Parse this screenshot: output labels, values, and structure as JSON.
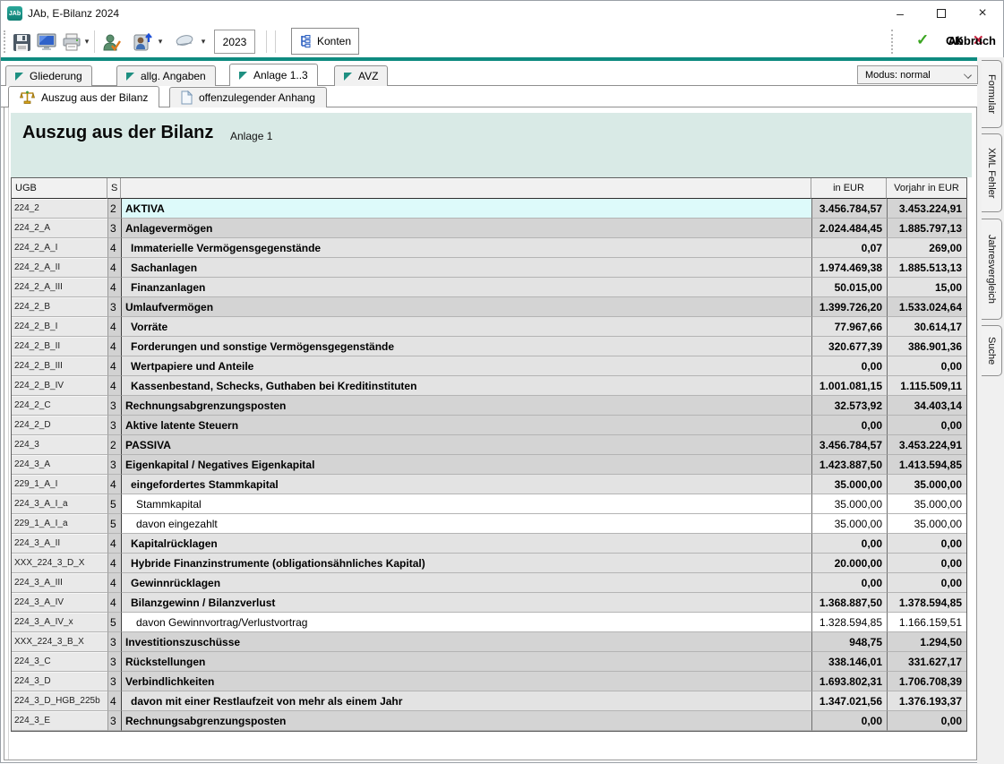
{
  "window": {
    "icon_text": "JAb",
    "title": "JAb, E-Bilanz 2024",
    "controls": {
      "minimize": "–",
      "maximize": "",
      "close": "×"
    }
  },
  "toolbar": {
    "year": "2023",
    "konten_label": "Konten",
    "ok_label": "OK",
    "cancel_label": "Abbruch",
    "ok_glyph": "✓",
    "cancel_glyph": "✕",
    "icons": [
      "save-icon",
      "monitor-icon",
      "print-icon",
      "user-check-icon",
      "user-up-icon",
      "eraser-icon"
    ]
  },
  "mode_select": {
    "value": "Modus: normal"
  },
  "tabs": [
    {
      "label": "Gliederung",
      "active": false
    },
    {
      "label": "allg. Angaben",
      "active": false
    },
    {
      "label": "Anlage 1..3",
      "active": true
    },
    {
      "label": "AVZ",
      "active": false
    }
  ],
  "subtabs": [
    {
      "label": "Auszug aus der Bilanz",
      "active": true,
      "icon": "scales-icon"
    },
    {
      "label": "offenzulegender Anhang",
      "active": false,
      "icon": "document-icon"
    }
  ],
  "side_tabs": [
    "Formular",
    "XML Fehler",
    "Jahresvergleich",
    "Suche"
  ],
  "banner": {
    "title": "Auszug aus der Bilanz",
    "subtitle": "Anlage 1"
  },
  "colors": {
    "accent_teal": "#0e8b80",
    "banner_bg": "#d9eae6",
    "selected_row": "#ddfafa",
    "ok_green": "#3aa520",
    "cancel_red": "#c41e3a"
  },
  "table": {
    "columns": [
      "UGB",
      "S",
      "",
      "in EUR",
      "Vorjahr in EUR"
    ],
    "rows": [
      {
        "code": "224_2",
        "s": "2",
        "name": "AKTIVA",
        "eur": "3.456.784,57",
        "prev": "3.453.224,91",
        "level": 2,
        "selected": true
      },
      {
        "code": "224_2_A",
        "s": "3",
        "name": "Anlagevermögen",
        "eur": "2.024.484,45",
        "prev": "1.885.797,13",
        "level": 3
      },
      {
        "code": "224_2_A_I",
        "s": "4",
        "name": "Immaterielle Vermögensgegenstände",
        "eur": "0,07",
        "prev": "269,00",
        "level": 4
      },
      {
        "code": "224_2_A_II",
        "s": "4",
        "name": "Sachanlagen",
        "eur": "1.974.469,38",
        "prev": "1.885.513,13",
        "level": 4
      },
      {
        "code": "224_2_A_III",
        "s": "4",
        "name": "Finanzanlagen",
        "eur": "50.015,00",
        "prev": "15,00",
        "level": 4
      },
      {
        "code": "224_2_B",
        "s": "3",
        "name": "Umlaufvermögen",
        "eur": "1.399.726,20",
        "prev": "1.533.024,64",
        "level": 3
      },
      {
        "code": "224_2_B_I",
        "s": "4",
        "name": "Vorräte",
        "eur": "77.967,66",
        "prev": "30.614,17",
        "level": 4
      },
      {
        "code": "224_2_B_II",
        "s": "4",
        "name": "Forderungen und sonstige Vermögensgegenstände",
        "eur": "320.677,39",
        "prev": "386.901,36",
        "level": 4
      },
      {
        "code": "224_2_B_III",
        "s": "4",
        "name": "Wertpapiere und Anteile",
        "eur": "0,00",
        "prev": "0,00",
        "level": 4
      },
      {
        "code": "224_2_B_IV",
        "s": "4",
        "name": "Kassenbestand, Schecks, Guthaben bei Kreditinstituten",
        "eur": "1.001.081,15",
        "prev": "1.115.509,11",
        "level": 4
      },
      {
        "code": "224_2_C",
        "s": "3",
        "name": "Rechnungsabgrenzungsposten",
        "eur": "32.573,92",
        "prev": "34.403,14",
        "level": 3
      },
      {
        "code": "224_2_D",
        "s": "3",
        "name": "Aktive latente Steuern",
        "eur": "0,00",
        "prev": "0,00",
        "level": 3
      },
      {
        "code": "224_3",
        "s": "2",
        "name": "PASSIVA",
        "eur": "3.456.784,57",
        "prev": "3.453.224,91",
        "level": 2
      },
      {
        "code": "224_3_A",
        "s": "3",
        "name": "Eigenkapital / Negatives Eigenkapital",
        "eur": "1.423.887,50",
        "prev": "1.413.594,85",
        "level": 3
      },
      {
        "code": "229_1_A_I",
        "s": "4",
        "name": "eingefordertes Stammkapital",
        "eur": "35.000,00",
        "prev": "35.000,00",
        "level": 4
      },
      {
        "code": "224_3_A_I_a",
        "s": "5",
        "name": "Stammkapital",
        "eur": "35.000,00",
        "prev": "35.000,00",
        "level": 5
      },
      {
        "code": "229_1_A_I_a",
        "s": "5",
        "name": "davon eingezahlt",
        "eur": "35.000,00",
        "prev": "35.000,00",
        "level": 5
      },
      {
        "code": "224_3_A_II",
        "s": "4",
        "name": "Kapitalrücklagen",
        "eur": "0,00",
        "prev": "0,00",
        "level": 4
      },
      {
        "code": "XXX_224_3_D_X",
        "s": "4",
        "name": "Hybride Finanzinstrumente (obligationsähnliches Kapital)",
        "eur": "20.000,00",
        "prev": "0,00",
        "level": 4
      },
      {
        "code": "224_3_A_III",
        "s": "4",
        "name": "Gewinnrücklagen",
        "eur": "0,00",
        "prev": "0,00",
        "level": 4
      },
      {
        "code": "224_3_A_IV",
        "s": "4",
        "name": "Bilanzgewinn / Bilanzverlust",
        "eur": "1.368.887,50",
        "prev": "1.378.594,85",
        "level": 4
      },
      {
        "code": "224_3_A_IV_x",
        "s": "5",
        "name": "davon Gewinnvortrag/Verlustvortrag",
        "eur": "1.328.594,85",
        "prev": "1.166.159,51",
        "level": 5
      },
      {
        "code": "XXX_224_3_B_X",
        "s": "3",
        "name": "Investitionszuschüsse",
        "eur": "948,75",
        "prev": "1.294,50",
        "level": 3
      },
      {
        "code": "224_3_C",
        "s": "3",
        "name": "Rückstellungen",
        "eur": "338.146,01",
        "prev": "331.627,17",
        "level": 3
      },
      {
        "code": "224_3_D",
        "s": "3",
        "name": "Verbindlichkeiten",
        "eur": "1.693.802,31",
        "prev": "1.706.708,39",
        "level": 3
      },
      {
        "code": "224_3_D_HGB_225b",
        "s": "4",
        "name": "davon mit einer Restlaufzeit von mehr als einem Jahr",
        "eur": "1.347.021,56",
        "prev": "1.376.193,37",
        "level": 4
      },
      {
        "code": "224_3_E",
        "s": "3",
        "name": "Rechnungsabgrenzungsposten",
        "eur": "0,00",
        "prev": "0,00",
        "level": 3
      }
    ]
  }
}
